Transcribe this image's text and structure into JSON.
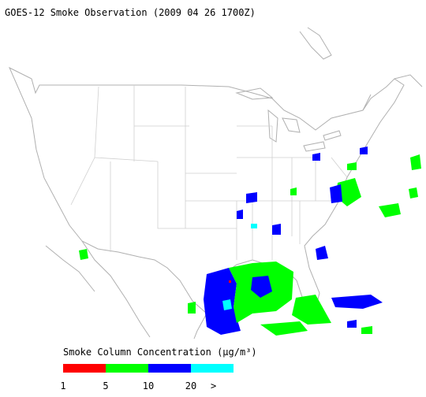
{
  "title": "GOES-12 Smoke Observation (2009 04 26  1700Z)",
  "legend": {
    "title": "Smoke Column Concentration (μg/m³)",
    "colors": [
      "#ff0000",
      "#00ff00",
      "#0000ff",
      "#00ffff"
    ],
    "labels": [
      "1",
      "5",
      "10",
      "20",
      ">"
    ]
  }
}
